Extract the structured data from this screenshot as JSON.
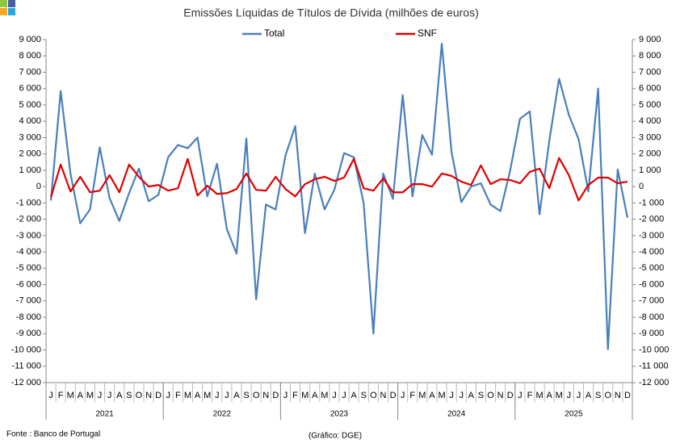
{
  "chart_data": {
    "type": "line",
    "title": "Emissões Líquidas de Títulos de Dívida (milhões de euros)",
    "categories": [
      "J",
      "F",
      "M",
      "A",
      "M",
      "J",
      "J",
      "A",
      "S",
      "O",
      "N",
      "D",
      "J",
      "F",
      "M",
      "A",
      "M",
      "J",
      "J",
      "A",
      "S",
      "O",
      "N",
      "D",
      "J",
      "F",
      "M",
      "A",
      "M",
      "J",
      "J",
      "A",
      "S",
      "O",
      "N",
      "D",
      "J",
      "F",
      "M",
      "A",
      "M",
      "J",
      "J",
      "A",
      "S",
      "O",
      "N",
      "D",
      "J",
      "F",
      "M",
      "A",
      "M",
      "J",
      "J",
      "A",
      "S",
      "O",
      "N",
      "D"
    ],
    "years": [
      "2021",
      "2022",
      "2023",
      "2024",
      "2025"
    ],
    "series": [
      {
        "name": "Total",
        "color": "#4a7ebb",
        "values": [
          -850,
          5850,
          800,
          -2250,
          -1400,
          2400,
          -700,
          -2100,
          -400,
          1100,
          -900,
          -500,
          1800,
          2550,
          2350,
          3000,
          -600,
          1400,
          -2600,
          -4100,
          2950,
          -6900,
          -1100,
          -1400,
          1900,
          3700,
          -2850,
          800,
          -1400,
          -200,
          2050,
          1800,
          -1000,
          -9000,
          800,
          -750,
          5600,
          -600,
          3150,
          1950,
          8750,
          2100,
          -950,
          0,
          200,
          -1100,
          -1500,
          1000,
          4150,
          4600,
          -1700,
          2800,
          6600,
          4400,
          2900,
          -300,
          6000,
          -9950,
          1050,
          -1900
        ]
      },
      {
        "name": "SNF",
        "color": "#e00000",
        "values": [
          -650,
          1350,
          -300,
          600,
          -350,
          -250,
          700,
          -350,
          1350,
          600,
          0,
          100,
          -250,
          -100,
          1700,
          -550,
          50,
          -450,
          -400,
          -150,
          800,
          -200,
          -250,
          600,
          -150,
          -600,
          150,
          450,
          600,
          350,
          550,
          1700,
          -100,
          -250,
          500,
          -350,
          -350,
          150,
          150,
          0,
          800,
          650,
          300,
          100,
          1300,
          150,
          450,
          400,
          200,
          900,
          1100,
          -100,
          1750,
          700,
          -850,
          100,
          550,
          550,
          200,
          300
        ]
      }
    ],
    "ylim": [
      -12000,
      9000
    ],
    "yticks": [
      {
        "value": -12000,
        "label": "-12 000"
      },
      {
        "value": -11000,
        "label": "-11 000"
      },
      {
        "value": -10000,
        "label": "-10 000"
      },
      {
        "value": -9000,
        "label": "-9 000"
      },
      {
        "value": -8000,
        "label": "-8 000"
      },
      {
        "value": -7000,
        "label": "-7 000"
      },
      {
        "value": -6000,
        "label": "-6 000"
      },
      {
        "value": -5000,
        "label": "-5 000"
      },
      {
        "value": -4000,
        "label": "-4 000"
      },
      {
        "value": -3000,
        "label": "-3 000"
      },
      {
        "value": -2000,
        "label": "-2 000"
      },
      {
        "value": -1000,
        "label": "-1 000"
      },
      0,
      {
        "value": 1000,
        "label": "1 000"
      },
      {
        "value": 2000,
        "label": "2 000"
      },
      {
        "value": 3000,
        "label": "3 000"
      },
      {
        "value": 4000,
        "label": "4 000"
      },
      {
        "value": 5000,
        "label": "5 000"
      },
      {
        "value": 6000,
        "label": "6 000"
      },
      {
        "value": 7000,
        "label": "7 000"
      },
      {
        "value": 8000,
        "label": "8 000"
      },
      {
        "value": 9000,
        "label": "9 000"
      }
    ],
    "grid": false,
    "source": "Fonte : Banco de Portugal",
    "credit": "(Gráfico: DGE)"
  }
}
